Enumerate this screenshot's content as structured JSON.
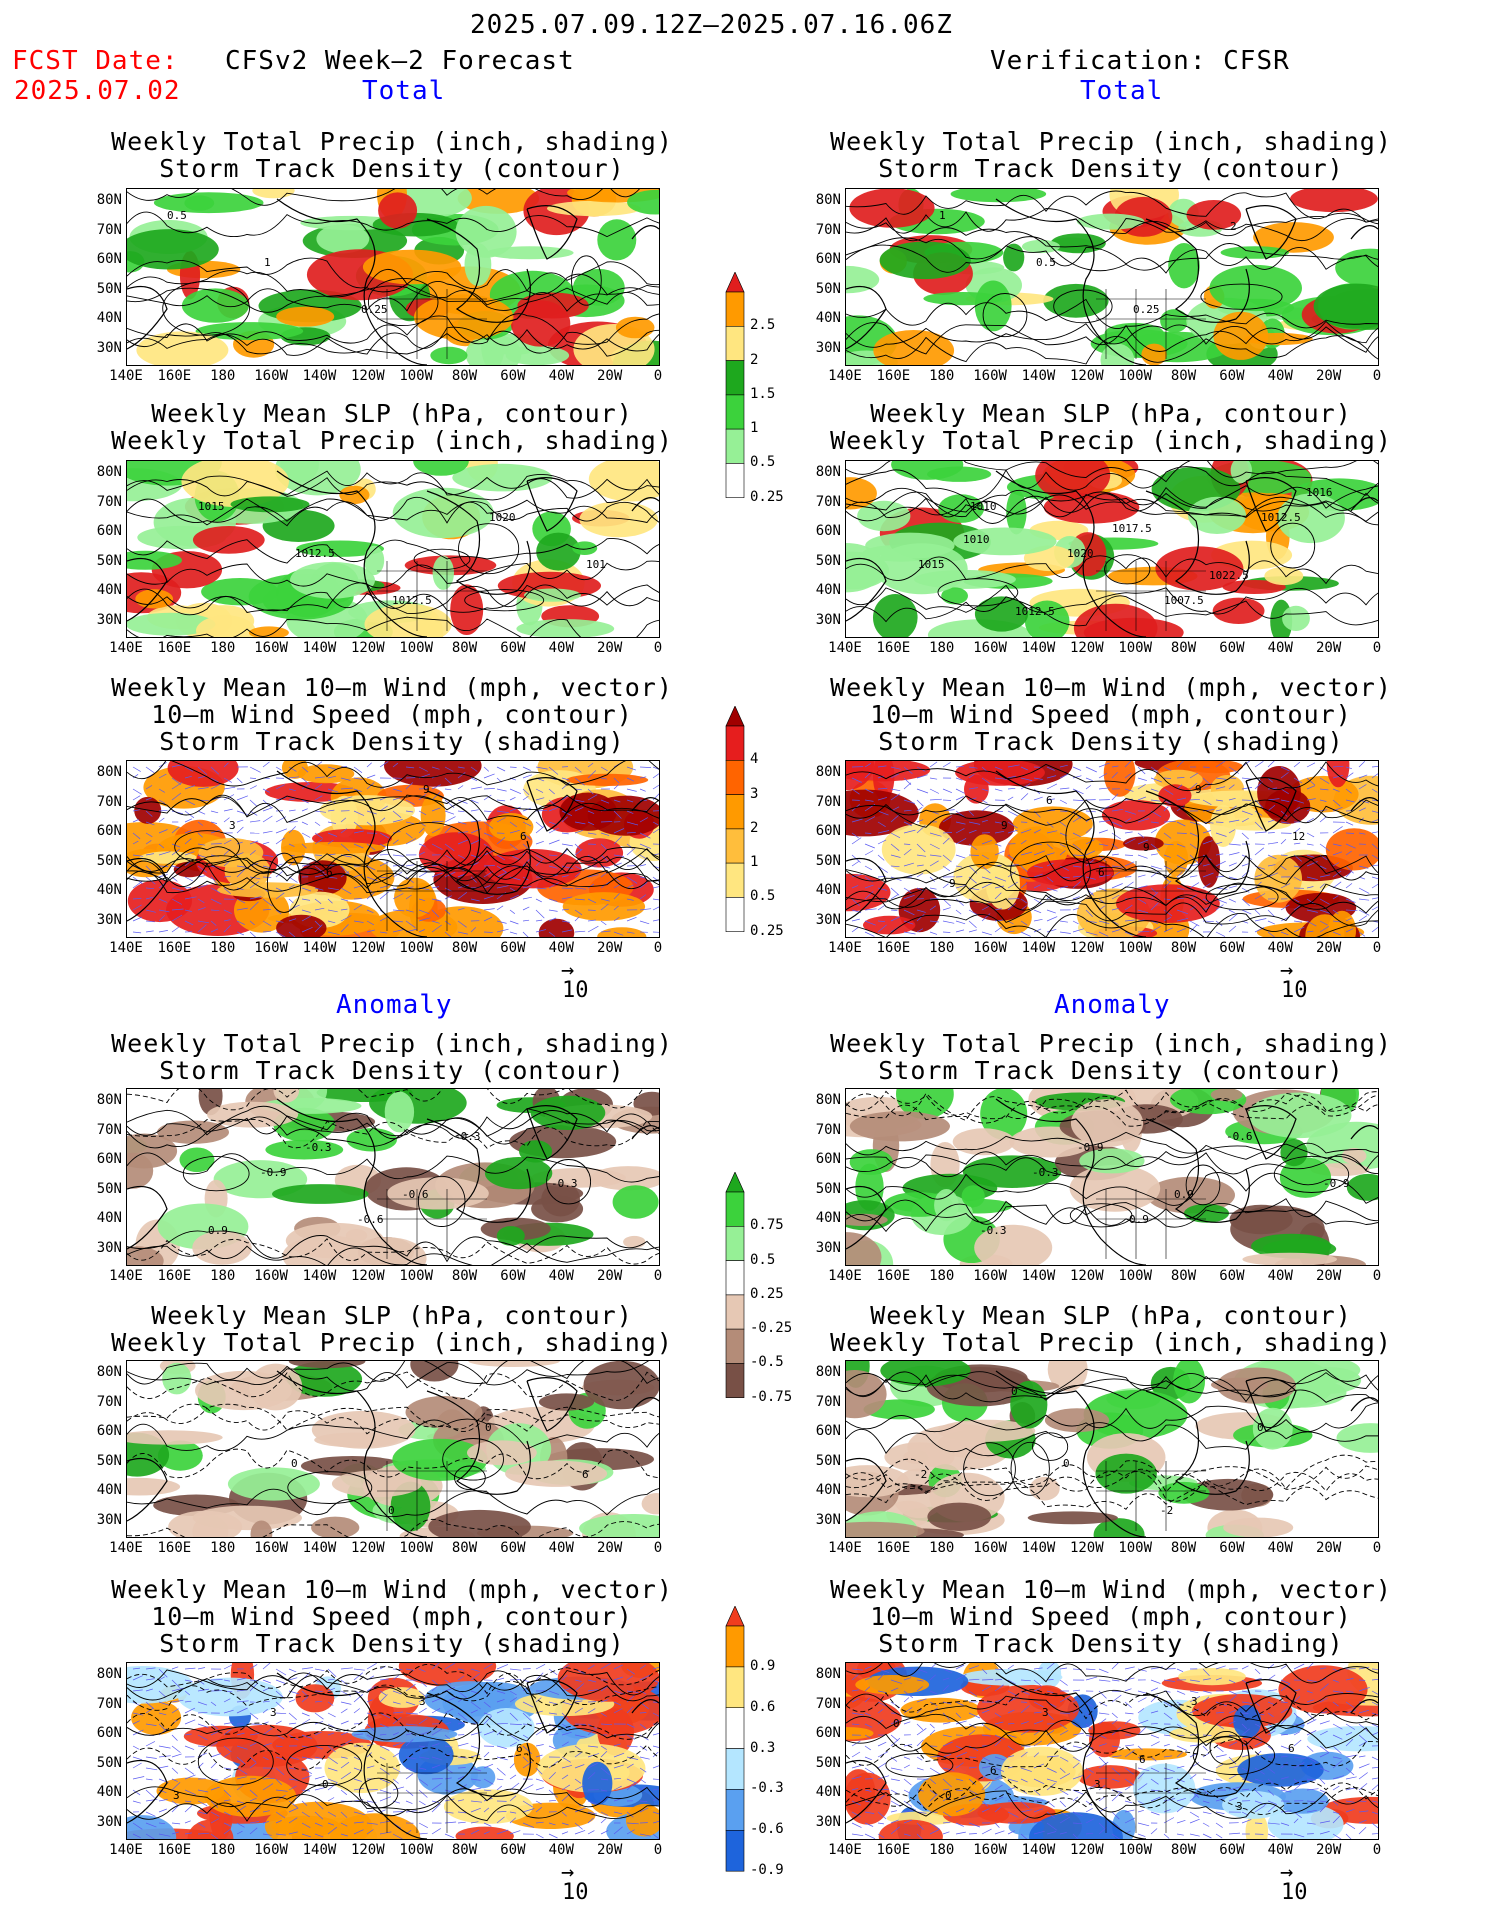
{
  "header": {
    "date_range": "2025.07.09.12Z–2025.07.16.06Z",
    "fcst_label": "FCST Date:",
    "fcst_date": "2025.07.02",
    "left_title": "CFSv2 Week–2 Forecast",
    "right_title": "Verification: CFSR"
  },
  "sections": {
    "total": "Total",
    "anomaly": "Anomaly"
  },
  "panel_titles": {
    "precip_storm": [
      "Weekly Total Precip (inch, shading)",
      "Storm Track Density (contour)"
    ],
    "slp_precip": [
      "Weekly Mean SLP (hPa, contour)",
      "Weekly Total Precip (inch, shading)"
    ],
    "wind": [
      "Weekly Mean 10–m Wind (mph, vector)",
      "10–m Wind Speed (mph, contour)",
      "Storm Track Density (shading)"
    ]
  },
  "axes": {
    "lat_labels": [
      "80N",
      "70N",
      "60N",
      "50N",
      "40N",
      "30N"
    ],
    "lon_labels": [
      "140E",
      "160E",
      "180",
      "160W",
      "140W",
      "120W",
      "100W",
      "80W",
      "60W",
      "40W",
      "20W",
      "0"
    ]
  },
  "colorbars": {
    "precip_total": {
      "labels": [
        "2.5",
        "2",
        "1.5",
        "1",
        "0.5",
        "0.25"
      ],
      "colors": [
        "#e01e1e",
        "#ff9a00",
        "#ffe680",
        "#1ea81e",
        "#3cd23c",
        "#96f096",
        "#ffffff"
      ]
    },
    "storm_total": {
      "labels": [
        "4",
        "3",
        "2",
        "1",
        "0.5",
        "0.25"
      ],
      "colors": [
        "#a00000",
        "#e61e1e",
        "#ff6400",
        "#ff9a00",
        "#ffbe3c",
        "#ffe680",
        "#ffffff"
      ]
    },
    "precip_anom": {
      "labels": [
        "0.75",
        "0.5",
        "0.25",
        "-0.25",
        "-0.5",
        "-0.75"
      ],
      "colors": [
        "#1ea81e",
        "#3cd23c",
        "#96f096",
        "#ffffff",
        "#e6c8b4",
        "#b48c78",
        "#785046"
      ]
    },
    "storm_anom": {
      "labels": [
        "0.9",
        "0.6",
        "0.3",
        "-0.3",
        "-0.6",
        "-0.9"
      ],
      "colors": [
        "#f03c1e",
        "#ff9a00",
        "#ffe680",
        "#ffffff",
        "#b4e6ff",
        "#5aa0f0",
        "#1e64dc"
      ]
    }
  },
  "vector_scale": "10",
  "contour_labels": {
    "r1_left": [
      "0.5",
      "1",
      "0.25"
    ],
    "r1_right": [
      "1",
      "0.5",
      "0.25",
      "2"
    ],
    "r2_left": [
      "1015",
      "1012.5",
      "1012.5",
      "1020",
      "101"
    ],
    "r2_right": [
      "1010",
      "1020",
      "1007.5",
      "1012.5",
      "1015",
      "1012.5",
      "1017.5",
      "1022.5",
      "1016",
      "1010"
    ],
    "r3_left": [
      "3",
      "6",
      "9",
      "6"
    ],
    "r3_right": [
      "9",
      "6",
      "9",
      "12",
      "9",
      "6",
      "9"
    ],
    "r4_left": [
      "-0.9",
      "-0.6",
      "-0.3",
      "-0.3",
      "0.9",
      "-0.3",
      "-0.6"
    ],
    "r4_right": [
      "-0.3",
      "0.9",
      "-0.6",
      "-0.9",
      "-0.3",
      "-0.9",
      "0.9"
    ],
    "r5_left": [
      "0",
      "0",
      "0",
      "6"
    ],
    "r5_right": [
      "0",
      "-2",
      "0",
      "-2",
      "0"
    ],
    "r6_left": [
      "0",
      "3",
      "6",
      "3",
      "3"
    ],
    "r6_right": [
      "3",
      "3",
      "6",
      "0",
      "3",
      "6",
      "3",
      "0",
      "6"
    ]
  }
}
